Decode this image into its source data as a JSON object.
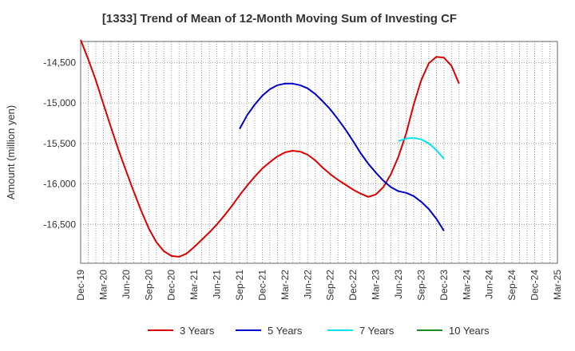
{
  "chart_data": {
    "type": "line",
    "title": "[1333]  Trend of Mean of 12-Month Moving Sum of Investing CF",
    "xlabel": "",
    "ylabel": "Amount (million yen)",
    "ylim": [
      -16980,
      -14240
    ],
    "yticks": [
      -14500,
      -15000,
      -15500,
      -16000,
      -16500
    ],
    "ytick_labels": [
      "-14,500",
      "-15,000",
      "-15,500",
      "-16,000",
      "-16,500"
    ],
    "x_start": "2019-12",
    "x_months_total": 63,
    "xtick_labels": [
      "Dec-19",
      "Mar-20",
      "Jun-20",
      "Sep-20",
      "Dec-20",
      "Mar-21",
      "Jun-21",
      "Sep-21",
      "Dec-21",
      "Mar-22",
      "Jun-22",
      "Sep-22",
      "Dec-22",
      "Mar-23",
      "Jun-23",
      "Sep-23",
      "Dec-23",
      "Mar-24",
      "Jun-24",
      "Sep-24",
      "Dec-24",
      "Mar-25"
    ],
    "grid": true,
    "legend_position": "bottom",
    "series": [
      {
        "name": "3 Years",
        "color": "#dd0000",
        "start_index": 0,
        "values": [
          -14220,
          -14460,
          -14720,
          -15010,
          -15300,
          -15580,
          -15840,
          -16090,
          -16330,
          -16550,
          -16720,
          -16830,
          -16890,
          -16900,
          -16860,
          -16780,
          -16690,
          -16600,
          -16500,
          -16390,
          -16270,
          -16140,
          -16020,
          -15910,
          -15810,
          -15730,
          -15660,
          -15610,
          -15590,
          -15600,
          -15640,
          -15710,
          -15800,
          -15880,
          -15950,
          -16010,
          -16070,
          -16120,
          -16160,
          -16130,
          -16040,
          -15880,
          -15660,
          -15380,
          -15020,
          -14720,
          -14510,
          -14430,
          -14440,
          -14540,
          -14760
        ]
      },
      {
        "name": "5 Years",
        "color": "#0000cc",
        "start_index": 21,
        "values": [
          -15320,
          -15150,
          -15020,
          -14910,
          -14830,
          -14780,
          -14760,
          -14760,
          -14780,
          -14820,
          -14890,
          -14980,
          -15080,
          -15200,
          -15330,
          -15470,
          -15620,
          -15750,
          -15860,
          -15960,
          -16040,
          -16090,
          -16110,
          -16150,
          -16220,
          -16310,
          -16430,
          -16580
        ]
      },
      {
        "name": "7 Years",
        "color": "#00e5ee",
        "start_index": 42,
        "values": [
          -15470,
          -15440,
          -15430,
          -15450,
          -15500,
          -15580,
          -15690
        ]
      },
      {
        "name": "10 Years",
        "color": "#228b22",
        "start_index": 0,
        "values": []
      }
    ]
  }
}
